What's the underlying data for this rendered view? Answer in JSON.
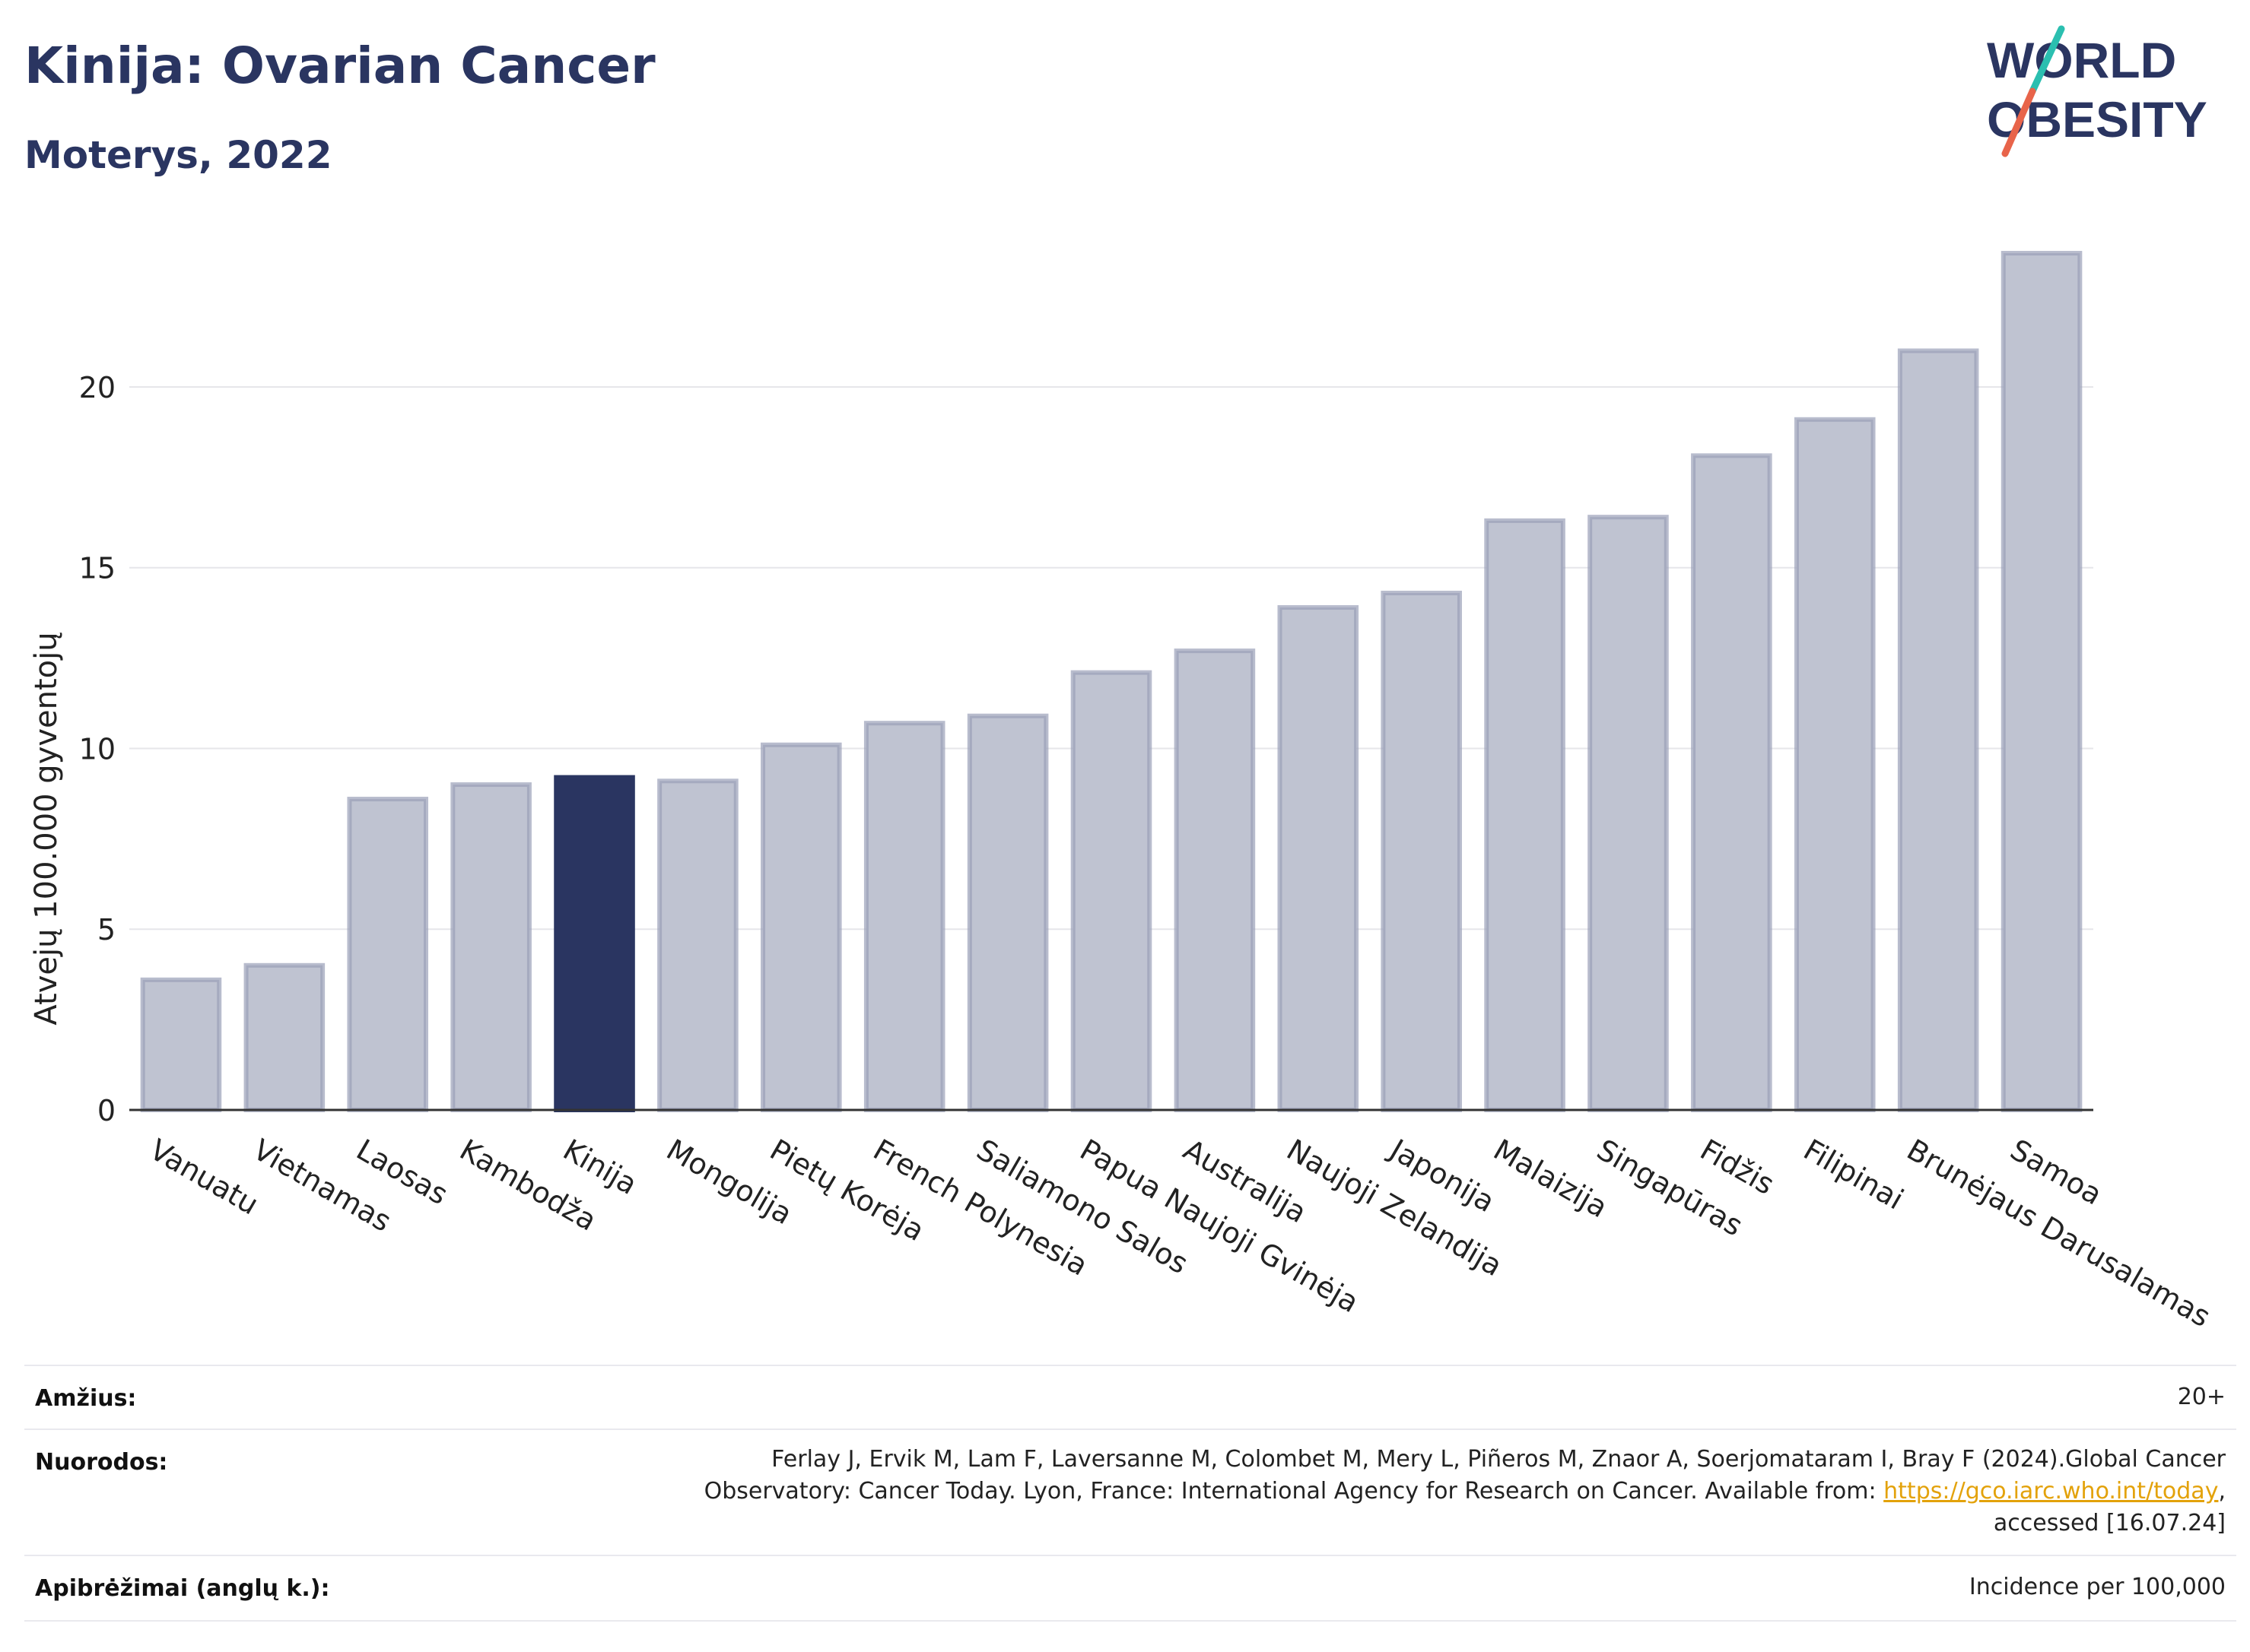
{
  "header": {
    "title": "Kinija: Ovarian Cancer",
    "subtitle": "Moterys, 2022"
  },
  "logo": {
    "line1": "WORLD",
    "line2": "OBESITY",
    "accent_colors": [
      "#2bbfb0",
      "#e8644a"
    ]
  },
  "colors": {
    "bar": "#bfc3d1",
    "bar_outline": "#9aa0b8",
    "highlight": "#2a3561",
    "axis_text": "#222222",
    "grid": "#e6e6ea"
  },
  "chart_data": {
    "type": "bar",
    "ylabel": "Atvejų 100.000 gyventojų",
    "xlabel": "",
    "ylim": [
      0,
      24.5
    ],
    "yticks": [
      0,
      5,
      10,
      15,
      20
    ],
    "grid": true,
    "highlight_category": "Kinija",
    "categories": [
      "Vanuatu",
      "Vietnamas",
      "Laosas",
      "Kambodža",
      "Kinija",
      "Mongolija",
      "Pietų Korėja",
      "French Polynesia",
      "Saliamono Salos",
      "Papua Naujoji Gvinėja",
      "Australija",
      "Naujoji Zelandija",
      "Japonija",
      "Malaizija",
      "Singapūras",
      "Fidžis",
      "Filipinai",
      "Brunėjaus Darusalamas",
      "Samoa"
    ],
    "values": [
      3.6,
      4.0,
      8.6,
      9.0,
      9.2,
      9.1,
      10.1,
      10.7,
      10.9,
      12.1,
      12.7,
      13.9,
      14.3,
      16.3,
      16.4,
      18.1,
      19.1,
      21.0,
      23.7
    ]
  },
  "footer": {
    "age_label": "Amžius:",
    "age_value": "20+",
    "refs_label": "Nuorodos:",
    "refs_line1": "Ferlay J, Ervik M, Lam F, Laversanne M, Colombet M, Mery L, Piñeros M, Znaor A, Soerjomataram I, Bray F (2024).Global Cancer",
    "refs_line2_pre": "Observatory: Cancer Today. Lyon, France: International Agency for Research on Cancer. Available from: ",
    "refs_link": "https://gco.iarc.who.int/today",
    "refs_line2_post": ",",
    "refs_line3": "accessed [16.07.24]",
    "defs_label": "Apibrėžimai (anglų k.):",
    "defs_value": "Incidence per 100,000"
  }
}
